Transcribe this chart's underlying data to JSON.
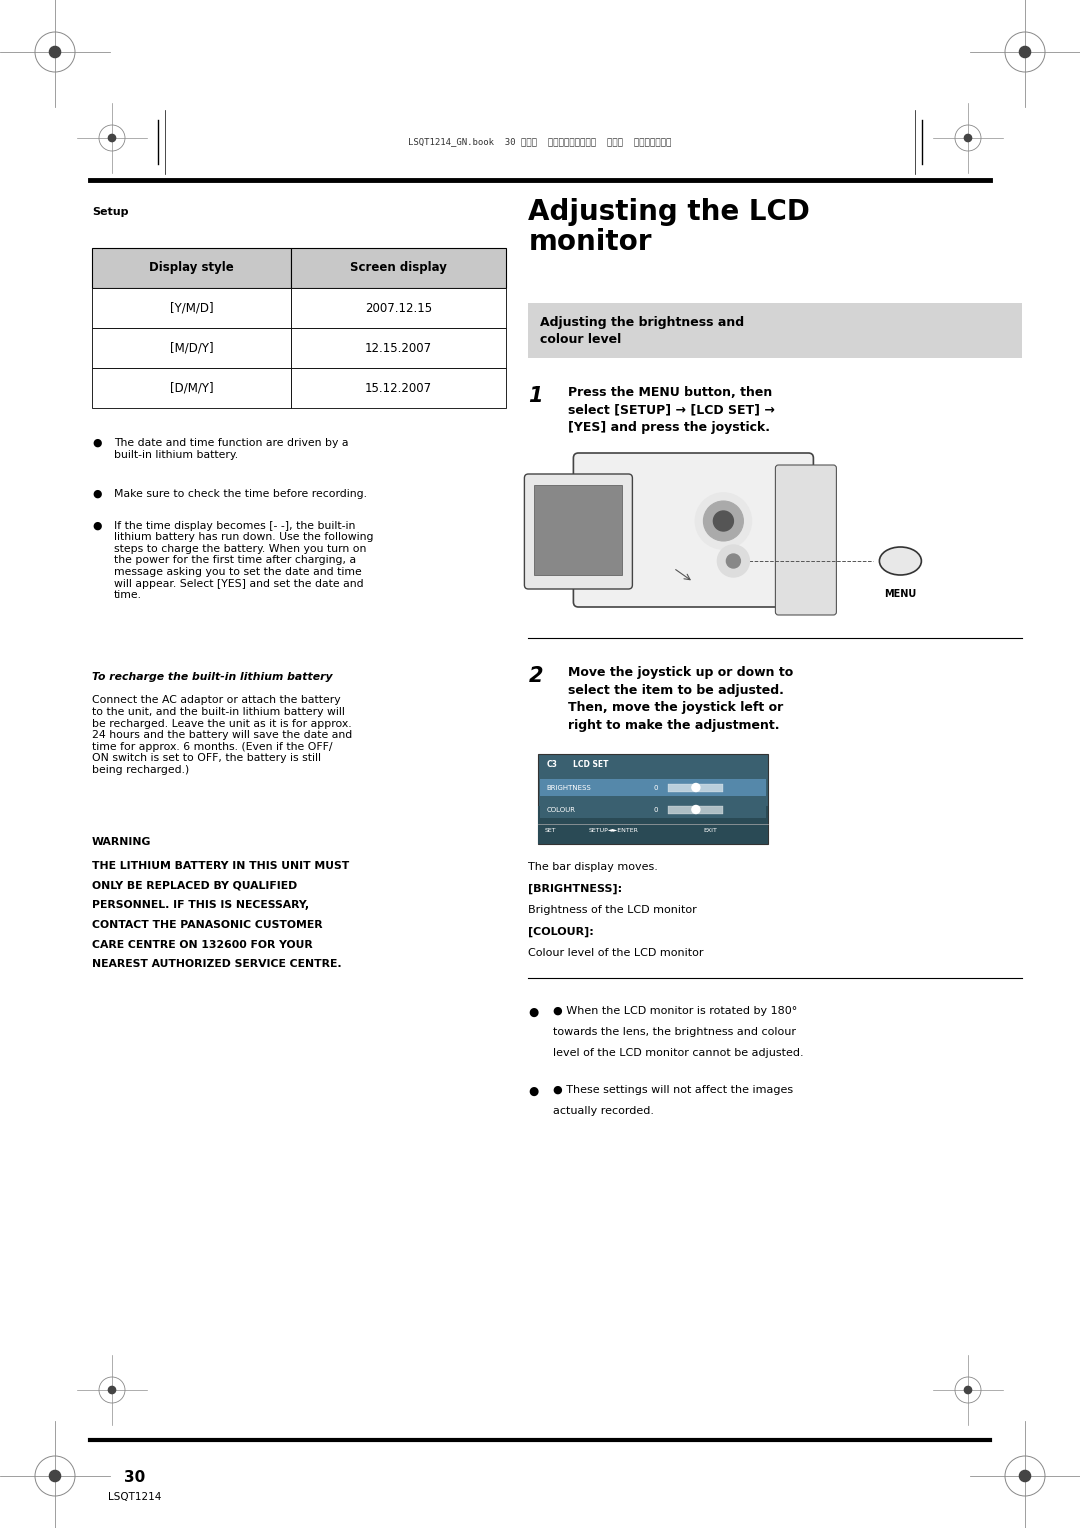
{
  "page_width": 10.8,
  "page_height": 15.28,
  "bg_color": "#ffffff",
  "header_text": "LSQT1214_GN.book  30 ページ  ２００７年２月８日  木曜日  午後８時５０分",
  "section_label": "Setup",
  "title_right": "Adjusting the LCD\nmonitor",
  "subtitle_box": "Adjusting the brightness and\ncolour level",
  "table_headers": [
    "Display style",
    "Screen display"
  ],
  "table_rows": [
    [
      "[Y/M/D]",
      "2007.12.15"
    ],
    [
      "[M/D/Y]",
      "12.15.2007"
    ],
    [
      "[D/M/Y]",
      "15.12.2007"
    ]
  ],
  "bullet1": "The date and time function are driven by a\nbuilt-in lithium battery.",
  "bullet2": "Make sure to check the time before recording.",
  "bullet3": "If the time display becomes [- -], the built-in\nlithium battery has run down. Use the following\nsteps to charge the battery. When you turn on\nthe power for the first time after charging, a\nmessage asking you to set the date and time\nwill appear. Select [YES] and set the date and\ntime.",
  "recharge_title": "To recharge the built-in lithium battery",
  "recharge_text": "Connect the AC adaptor or attach the battery\nto the unit, and the built-in lithium battery will\nbe recharged. Leave the unit as it is for approx.\n24 hours and the battery will save the date and\ntime for approx. 6 months. (Even if the OFF/\nON switch is set to OFF, the battery is still\nbeing recharged.)",
  "warning_title": "WARNING",
  "warning_line1": "THE LITHIUM BATTERY IN THIS UNIT MUST",
  "warning_line2": "ONLY BE REPLACED BY QUALIFIED",
  "warning_line3": "PERSONNEL. IF THIS IS NECESSARY,",
  "warning_line4": "CONTACT THE PANASONIC CUSTOMER",
  "warning_line5": "CARE CENTRE ON 132600 FOR YOUR",
  "warning_line6": "NEAREST AUTHORIZED SERVICE CENTRE.",
  "step1_num": "1",
  "step1_text": "Press the MENU button, then\nselect [SETUP] → [LCD SET] →\n[YES] and press the joystick.",
  "menu_label": "MENU",
  "step2_num": "2",
  "step2_text": "Move the joystick up or down to\nselect the item to be adjusted.\nThen, move the joystick left or\nright to make the adjustment.",
  "cap_line1": "The bar display moves.",
  "cap_line2": "[BRIGHTNESS]:",
  "cap_line3": "Brightness of the LCD monitor",
  "cap_line4": "[COLOUR]:",
  "cap_line5": "Colour level of the LCD monitor",
  "rbullet1_line1": "● When the LCD monitor is rotated by 180°",
  "rbullet1_line2": "towards the lens, the brightness and colour",
  "rbullet1_line3": "level of the LCD monitor cannot be adjusted.",
  "rbullet2_line1": "● These settings will not affect the images",
  "rbullet2_line2": "actually recorded.",
  "page_number": "30",
  "footer_text": "LSQT1214",
  "reg_color": "#999999",
  "table_hdr_bg": "#c8c8c8",
  "subtitle_bg": "#d4d4d4",
  "text_color": "#000000",
  "col_divider": 0.48
}
